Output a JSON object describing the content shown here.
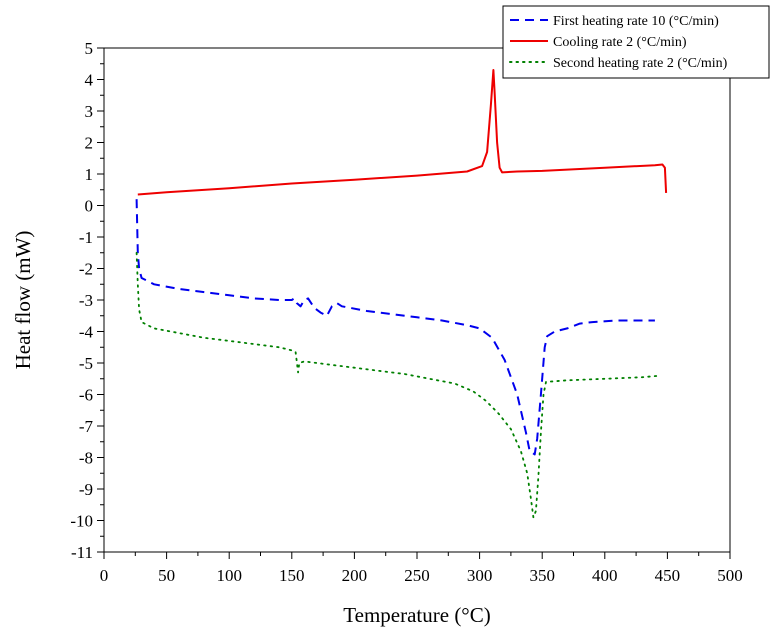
{
  "chart_data": {
    "type": "line",
    "title": "",
    "xlabel": "Temperature (°C)",
    "ylabel": "Heat flow (mW)",
    "xlim": [
      0,
      500
    ],
    "ylim": [
      -11,
      5
    ],
    "x_ticks": [
      "0",
      "50",
      "100",
      "150",
      "200",
      "250",
      "300",
      "350",
      "400",
      "450",
      "500"
    ],
    "y_ticks": [
      "5",
      "4",
      "3",
      "2",
      "1",
      "0",
      "-1",
      "-2",
      "-3",
      "-4",
      "-5",
      "-6",
      "-7",
      "-8",
      "-9",
      "-10",
      "-11"
    ],
    "grid": false,
    "legend_position": "top-right",
    "series": [
      {
        "name": "First heating rate 10 (°C/min)",
        "color": "#0000ee",
        "style": "dashed",
        "points": [
          [
            26,
            0.2
          ],
          [
            27,
            -1.5
          ],
          [
            28,
            -2.0
          ],
          [
            30,
            -2.3
          ],
          [
            40,
            -2.5
          ],
          [
            60,
            -2.65
          ],
          [
            80,
            -2.75
          ],
          [
            100,
            -2.85
          ],
          [
            120,
            -2.95
          ],
          [
            140,
            -3.0
          ],
          [
            150,
            -3.0
          ],
          [
            152,
            -2.95
          ],
          [
            154,
            -3.1
          ],
          [
            157,
            -3.2
          ],
          [
            160,
            -3.0
          ],
          [
            163,
            -2.95
          ],
          [
            168,
            -3.25
          ],
          [
            173,
            -3.4
          ],
          [
            178,
            -3.5
          ],
          [
            182,
            -3.2
          ],
          [
            186,
            -3.1
          ],
          [
            190,
            -3.2
          ],
          [
            210,
            -3.35
          ],
          [
            230,
            -3.45
          ],
          [
            250,
            -3.55
          ],
          [
            270,
            -3.65
          ],
          [
            290,
            -3.8
          ],
          [
            300,
            -3.9
          ],
          [
            310,
            -4.2
          ],
          [
            320,
            -4.9
          ],
          [
            330,
            -6.0
          ],
          [
            337,
            -7.2
          ],
          [
            340,
            -7.8
          ],
          [
            344,
            -7.9
          ],
          [
            346,
            -7.4
          ],
          [
            349,
            -6.0
          ],
          [
            352,
            -4.5
          ],
          [
            354,
            -4.15
          ],
          [
            360,
            -4.0
          ],
          [
            370,
            -3.9
          ],
          [
            380,
            -3.75
          ],
          [
            390,
            -3.7
          ],
          [
            410,
            -3.65
          ],
          [
            440,
            -3.65
          ]
        ]
      },
      {
        "name": "Cooling rate 2 (°C/min)",
        "color": "#ee0000",
        "style": "solid",
        "points": [
          [
            27,
            0.35
          ],
          [
            50,
            0.42
          ],
          [
            100,
            0.55
          ],
          [
            150,
            0.7
          ],
          [
            200,
            0.82
          ],
          [
            250,
            0.95
          ],
          [
            290,
            1.08
          ],
          [
            302,
            1.25
          ],
          [
            306,
            1.7
          ],
          [
            309,
            3.2
          ],
          [
            311,
            4.3
          ],
          [
            312,
            3.6
          ],
          [
            314,
            2.0
          ],
          [
            316,
            1.2
          ],
          [
            318,
            1.05
          ],
          [
            330,
            1.08
          ],
          [
            350,
            1.1
          ],
          [
            400,
            1.2
          ],
          [
            440,
            1.28
          ],
          [
            446,
            1.3
          ],
          [
            448,
            1.2
          ],
          [
            449,
            0.4
          ]
        ]
      },
      {
        "name": "Second heating rate 2 (°C/min)",
        "color": "#008000",
        "style": "dotted",
        "points": [
          [
            26,
            -1.5
          ],
          [
            27,
            -2.5
          ],
          [
            28,
            -3.3
          ],
          [
            30,
            -3.7
          ],
          [
            40,
            -3.9
          ],
          [
            60,
            -4.05
          ],
          [
            80,
            -4.2
          ],
          [
            100,
            -4.3
          ],
          [
            120,
            -4.4
          ],
          [
            140,
            -4.5
          ],
          [
            150,
            -4.6
          ],
          [
            153,
            -4.65
          ],
          [
            155,
            -5.3
          ],
          [
            156,
            -5.0
          ],
          [
            160,
            -4.95
          ],
          [
            180,
            -5.05
          ],
          [
            200,
            -5.15
          ],
          [
            220,
            -5.25
          ],
          [
            240,
            -5.35
          ],
          [
            260,
            -5.5
          ],
          [
            280,
            -5.65
          ],
          [
            295,
            -5.9
          ],
          [
            305,
            -6.2
          ],
          [
            315,
            -6.6
          ],
          [
            325,
            -7.1
          ],
          [
            333,
            -7.8
          ],
          [
            338,
            -8.5
          ],
          [
            341,
            -9.3
          ],
          [
            343,
            -9.9
          ],
          [
            345,
            -9.7
          ],
          [
            347,
            -8.6
          ],
          [
            349,
            -7.2
          ],
          [
            351,
            -6.0
          ],
          [
            353,
            -5.6
          ],
          [
            370,
            -5.55
          ],
          [
            400,
            -5.5
          ],
          [
            430,
            -5.45
          ],
          [
            445,
            -5.4
          ]
        ]
      }
    ]
  }
}
